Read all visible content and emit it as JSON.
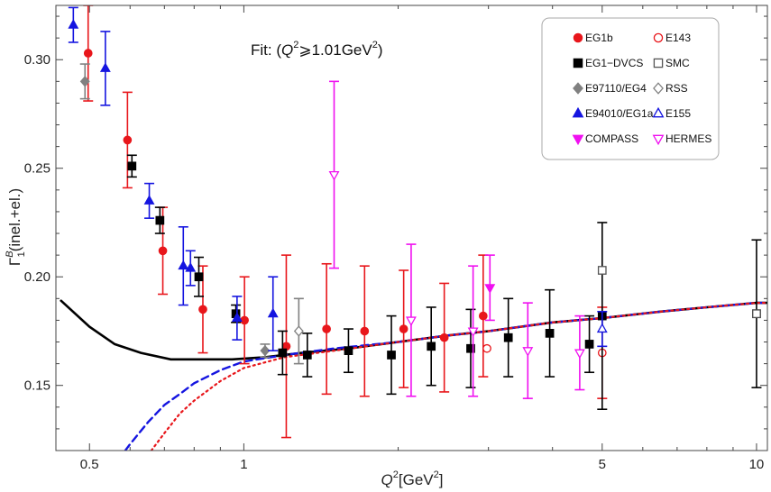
{
  "chart_data": {
    "type": "scatter",
    "title": "",
    "annotation": {
      "prefix": "Fit:  (",
      "q": "Q",
      "sup": "2",
      "rest": "⩾1.01GeV",
      "sup2": "2",
      "suffix": ")"
    },
    "xlabel": {
      "q": "Q",
      "sup": "2",
      "rest": "[GeV",
      "sup2": "2",
      "end": "]"
    },
    "ylabel": {
      "gamma": "Γ",
      "sup": "B",
      "sub": "1",
      "rest": "(inel.+el.)"
    },
    "x_scale": "log",
    "xlim": [
      0.43,
      10.5
    ],
    "ylim": [
      0.12,
      0.325
    ],
    "x_ticks": [
      {
        "value": 0.5,
        "label": "0.5"
      },
      {
        "value": 1,
        "label": "1"
      },
      {
        "value": 5,
        "label": "5"
      },
      {
        "value": 10,
        "label": "10"
      }
    ],
    "y_ticks": [
      {
        "value": 0.15,
        "label": "0.15"
      },
      {
        "value": 0.2,
        "label": "0.20"
      },
      {
        "value": 0.25,
        "label": "0.25"
      },
      {
        "value": 0.3,
        "label": "0.30"
      }
    ],
    "grid": false,
    "legend_position": "top-right",
    "series": [
      {
        "name": "EG1b",
        "marker": "circle",
        "filled": true,
        "color": "#e8161b",
        "points": [
          [
            0.497,
            0.303,
            0.022
          ],
          [
            0.593,
            0.263,
            0.022
          ],
          [
            0.695,
            0.212,
            0.02
          ],
          [
            0.832,
            0.185,
            0.02
          ],
          [
            1.003,
            0.18,
            0.02
          ],
          [
            1.21,
            0.168,
            0.042
          ],
          [
            1.45,
            0.176,
            0.03
          ],
          [
            1.72,
            0.175,
            0.03
          ],
          [
            2.05,
            0.176,
            0.027
          ],
          [
            2.46,
            0.172,
            0.025
          ],
          [
            2.93,
            0.182,
            0.028
          ]
        ]
      },
      {
        "name": "E143",
        "marker": "circle",
        "filled": false,
        "color": "#e8161b",
        "points": [
          [
            2.98,
            0.167,
            0.0
          ],
          [
            5.0,
            0.165,
            0.021
          ]
        ]
      },
      {
        "name": "EG1−DVCS",
        "marker": "square",
        "filled": true,
        "color": "#000000",
        "points": [
          [
            0.605,
            0.251,
            0.005
          ],
          [
            0.686,
            0.226,
            0.006
          ],
          [
            0.817,
            0.2,
            0.009
          ],
          [
            0.965,
            0.183,
            0.004
          ],
          [
            1.19,
            0.165,
            0.01
          ],
          [
            1.33,
            0.164,
            0.01
          ],
          [
            1.6,
            0.166,
            0.01
          ],
          [
            1.94,
            0.164,
            0.018
          ],
          [
            2.32,
            0.168,
            0.018
          ],
          [
            2.77,
            0.167,
            0.018
          ],
          [
            3.28,
            0.172,
            0.018
          ],
          [
            3.95,
            0.174,
            0.02
          ],
          [
            4.72,
            0.169,
            0.013
          ],
          [
            5.0,
            0.182,
            0.043
          ],
          [
            10.0,
            0.183,
            0.034
          ]
        ]
      },
      {
        "name": "SMC",
        "marker": "square",
        "filled": false,
        "color": "#555555",
        "points": [
          [
            5.0,
            0.203,
            0.0
          ],
          [
            10.0,
            0.183,
            0.0
          ]
        ]
      },
      {
        "name": "E97110/EG4",
        "marker": "diamond",
        "filled": true,
        "color": "#808080",
        "points": [
          [
            0.49,
            0.29,
            0.008
          ],
          [
            1.1,
            0.166,
            0.003
          ]
        ]
      },
      {
        "name": "RSS",
        "marker": "diamond",
        "filled": false,
        "color": "#808080",
        "points": [
          [
            1.28,
            0.175,
            0.015
          ]
        ]
      },
      {
        "name": "E94010/EG1a",
        "marker": "triangle",
        "filled": true,
        "color": "#1515e0",
        "points": [
          [
            0.465,
            0.316,
            0.008
          ],
          [
            0.537,
            0.296,
            0.017
          ],
          [
            0.654,
            0.235,
            0.008
          ],
          [
            0.762,
            0.205,
            0.018
          ],
          [
            0.787,
            0.204,
            0.008
          ],
          [
            0.97,
            0.181,
            0.01
          ],
          [
            1.14,
            0.183,
            0.017
          ]
        ]
      },
      {
        "name": "E155",
        "marker": "triangle",
        "filled": false,
        "color": "#1515e0",
        "points": [
          [
            5.0,
            0.176,
            0.008
          ]
        ]
      },
      {
        "name": "COMPASS",
        "marker": "triangle-down",
        "filled": true,
        "color": "#f010f0",
        "points": [
          [
            3.02,
            0.195,
            0.015
          ]
        ]
      },
      {
        "name": "HERMES",
        "marker": "triangle-down",
        "filled": false,
        "color": "#f010f0",
        "points": [
          [
            1.5,
            0.247,
            0.043
          ],
          [
            2.12,
            0.18,
            0.035
          ],
          [
            2.8,
            0.175,
            0.03
          ],
          [
            3.58,
            0.166,
            0.022
          ],
          [
            4.52,
            0.165,
            0.017
          ]
        ]
      }
    ],
    "curves": [
      {
        "color": "#000000",
        "dash": "",
        "width": 2.6,
        "points": [
          [
            0.44,
            0.189
          ],
          [
            0.5,
            0.177
          ],
          [
            0.56,
            0.169
          ],
          [
            0.63,
            0.165
          ],
          [
            0.72,
            0.162
          ],
          [
            0.82,
            0.162
          ],
          [
            0.95,
            0.162
          ],
          [
            1.1,
            0.163
          ],
          [
            1.3,
            0.165
          ],
          [
            1.6,
            0.167
          ],
          [
            2.0,
            0.17
          ],
          [
            2.5,
            0.173
          ],
          [
            3.0,
            0.175
          ],
          [
            4.0,
            0.179
          ],
          [
            5.0,
            0.181
          ],
          [
            6.5,
            0.184
          ],
          [
            8.0,
            0.186
          ],
          [
            10.0,
            0.188
          ],
          [
            10.5,
            0.188
          ]
        ]
      },
      {
        "color": "#1515e0",
        "dash": "8,5",
        "width": 2.4,
        "points": [
          [
            0.587,
            0.12
          ],
          [
            0.6,
            0.123
          ],
          [
            0.65,
            0.133
          ],
          [
            0.7,
            0.141
          ],
          [
            0.75,
            0.146
          ],
          [
            0.8,
            0.151
          ],
          [
            0.9,
            0.157
          ],
          [
            1.0,
            0.161
          ],
          [
            1.2,
            0.164
          ],
          [
            1.5,
            0.167
          ],
          [
            2.0,
            0.17
          ],
          [
            2.5,
            0.173
          ],
          [
            3.0,
            0.175
          ],
          [
            4.0,
            0.179
          ],
          [
            5.0,
            0.181
          ],
          [
            6.5,
            0.184
          ],
          [
            8.0,
            0.186
          ],
          [
            10.0,
            0.188
          ],
          [
            10.5,
            0.188
          ]
        ]
      },
      {
        "color": "#e8161b",
        "dash": "2,4",
        "width": 2.2,
        "points": [
          [
            0.66,
            0.12
          ],
          [
            0.7,
            0.128
          ],
          [
            0.75,
            0.137
          ],
          [
            0.8,
            0.143
          ],
          [
            0.9,
            0.152
          ],
          [
            1.0,
            0.158
          ],
          [
            1.2,
            0.163
          ],
          [
            1.5,
            0.166
          ],
          [
            2.0,
            0.17
          ],
          [
            2.5,
            0.173
          ],
          [
            3.0,
            0.175
          ],
          [
            4.0,
            0.179
          ],
          [
            5.0,
            0.181
          ],
          [
            6.5,
            0.184
          ],
          [
            8.0,
            0.186
          ],
          [
            10.0,
            0.188
          ],
          [
            10.5,
            0.188
          ]
        ]
      }
    ]
  }
}
